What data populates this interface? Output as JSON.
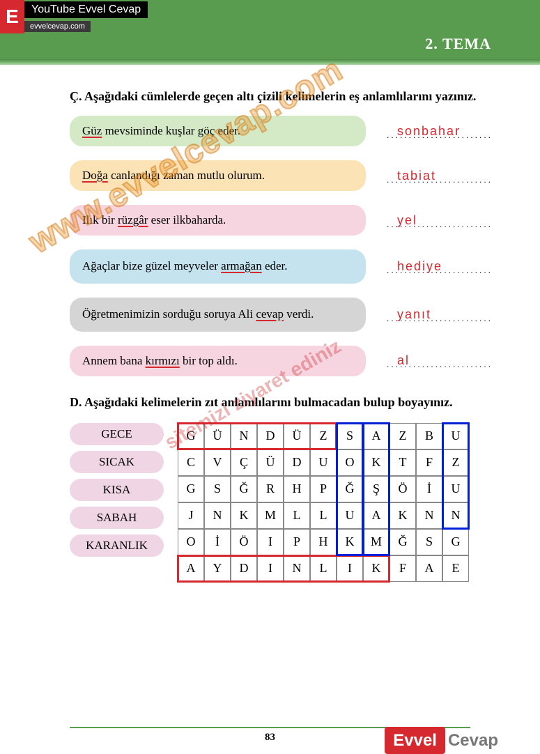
{
  "banner": {
    "logo_letter": "E",
    "youtube_text": "YouTube Evvel Cevap",
    "url_text": "evvelcevap.com",
    "tema": "2. TEMA"
  },
  "section_c": {
    "heading": "Ç. Aşağıdaki cümlelerde geçen altı çizili kelimelerin eş anlamlılarını yazınız.",
    "rows": [
      {
        "prefix": "",
        "underlined": "Güz",
        "suffix": " mevsiminde kuşlar göç eder.",
        "answer": "sonbahar",
        "bg": "bg-green"
      },
      {
        "prefix": "",
        "underlined": "Doğa",
        "suffix": " canlandığı zaman mutlu olurum.",
        "answer": "tabiat",
        "bg": "bg-orange"
      },
      {
        "prefix": "Ilık bir ",
        "underlined": "rüzgâr",
        "suffix": " eser ilkbaharda.",
        "answer": "yel",
        "bg": "bg-pink"
      },
      {
        "prefix": "Ağaçlar bize güzel meyveler ",
        "underlined": "armağan",
        "suffix": " eder.",
        "answer": "hediye",
        "bg": "bg-blue",
        "tall": true
      },
      {
        "prefix": "Öğretmenimizin sorduğu soruya Ali ",
        "underlined": "cevap",
        "suffix": " verdi.",
        "answer": "yanıt",
        "bg": "bg-gray",
        "tall": true
      },
      {
        "prefix": "Annem bana ",
        "underlined": "kırmızı",
        "suffix": " bir top aldı.",
        "answer": "al",
        "bg": "bg-pink"
      }
    ]
  },
  "section_d": {
    "heading": "D. Aşağıdaki kelimelerin zıt anlamlılarını bulmacadan bulup boyayınız.",
    "words": [
      "GECE",
      "SICAK",
      "KISA",
      "SABAH",
      "KARANLIK"
    ],
    "grid": [
      [
        "G",
        "Ü",
        "N",
        "D",
        "Ü",
        "Z",
        "S",
        "A",
        "Z",
        "B",
        "U"
      ],
      [
        "C",
        "V",
        "Ç",
        "Ü",
        "D",
        "U",
        "O",
        "K",
        "T",
        "F",
        "Z"
      ],
      [
        "G",
        "S",
        "Ğ",
        "R",
        "H",
        "P",
        "Ğ",
        "Ş",
        "Ö",
        "İ",
        "U"
      ],
      [
        "J",
        "N",
        "K",
        "M",
        "L",
        "L",
        "U",
        "A",
        "K",
        "N",
        "N"
      ],
      [
        "O",
        "İ",
        "Ö",
        "I",
        "P",
        "H",
        "K",
        "M",
        "Ğ",
        "S",
        "G"
      ],
      [
        "A",
        "Y",
        "D",
        "I",
        "N",
        "L",
        "I",
        "K",
        "F",
        "A",
        "E"
      ]
    ],
    "highlights": [
      {
        "color": "red",
        "r1": 0,
        "c1": 0,
        "r2": 0,
        "c2": 5
      },
      {
        "color": "red",
        "r1": 5,
        "c1": 0,
        "r2": 5,
        "c2": 7
      },
      {
        "color": "blue",
        "r1": 0,
        "c1": 6,
        "r2": 4,
        "c2": 6
      },
      {
        "color": "blue",
        "r1": 0,
        "c1": 7,
        "r2": 4,
        "c2": 7
      },
      {
        "color": "blue",
        "r1": 0,
        "c1": 10,
        "r2": 3,
        "c2": 10
      }
    ]
  },
  "page_number": "83",
  "watermark": "www.evvelcevap.com",
  "watermark2": "sitemizi ziyaret ediniz",
  "footer_logo": {
    "a": "Evvel",
    "b": "Cevap"
  }
}
